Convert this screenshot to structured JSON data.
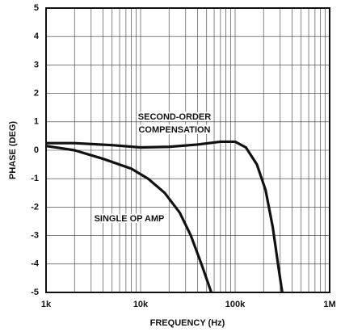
{
  "chart_data": {
    "type": "line",
    "xlabel": "FREQUENCY (Hz)",
    "ylabel": "PHASE (DEG)",
    "annotations": [
      "SECOND-ORDER",
      "COMPENSATION",
      "SINGLE OP AMP"
    ],
    "xscale": "log",
    "xlim": [
      1000,
      1000000
    ],
    "ylim": [
      -5,
      5
    ],
    "xticks": [
      {
        "value": 1000,
        "label": "1k"
      },
      {
        "value": 10000,
        "label": "10k"
      },
      {
        "value": 100000,
        "label": "100k"
      },
      {
        "value": 1000000,
        "label": "1M"
      }
    ],
    "xminorticks": [
      2000,
      3000,
      4000,
      5000,
      6000,
      7000,
      8000,
      9000,
      20000,
      30000,
      40000,
      50000,
      60000,
      70000,
      80000,
      90000,
      200000,
      300000,
      400000,
      500000,
      600000,
      700000,
      800000,
      900000
    ],
    "yticks": [
      5,
      4,
      3,
      2,
      1,
      0,
      -1,
      -2,
      -3,
      -4,
      -5
    ],
    "grid": true,
    "series": [
      {
        "color": "#111111",
        "x": [
          1000,
          2000,
          5000,
          10000,
          20000,
          40000,
          70000,
          100000,
          130000,
          170000,
          210000,
          250000,
          290000,
          315000
        ],
        "values": [
          0.25,
          0.25,
          0.18,
          0.1,
          0.12,
          0.2,
          0.3,
          0.3,
          0.1,
          -0.5,
          -1.4,
          -2.7,
          -4.2,
          -5
        ]
      },
      {
        "color": "#111111",
        "x": [
          1000,
          2000,
          4000,
          8000,
          12000,
          18000,
          26000,
          34000,
          44000,
          56000
        ],
        "values": [
          0.15,
          0,
          -0.3,
          -0.65,
          -1,
          -1.5,
          -2.2,
          -3,
          -4,
          -5
        ]
      }
    ]
  }
}
